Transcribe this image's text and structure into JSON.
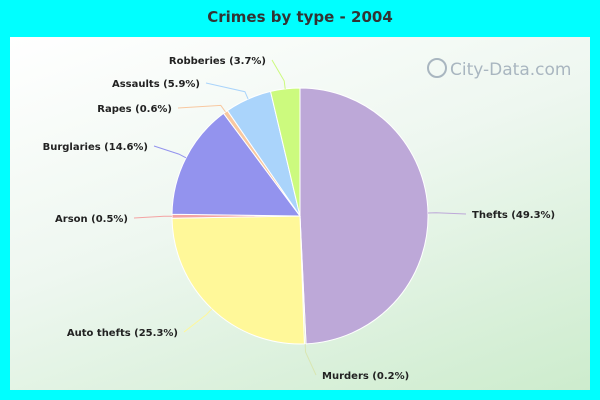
{
  "chart_data": {
    "type": "pie",
    "title": "Crimes by type - 2004",
    "watermark": "City-Data.com",
    "slices": [
      {
        "label": "Thefts",
        "percent": 49.3,
        "text": "Thefts (49.3%)",
        "color": "#bda8d8"
      },
      {
        "label": "Murders",
        "percent": 0.2,
        "text": "Murders (0.2%)",
        "color": "#d9e6b2"
      },
      {
        "label": "Auto thefts",
        "percent": 25.3,
        "text": "Auto thefts (25.3%)",
        "color": "#fff899"
      },
      {
        "label": "Arson",
        "percent": 0.5,
        "text": "Arson (0.5%)",
        "color": "#f4a3a3"
      },
      {
        "label": "Burglaries",
        "percent": 14.6,
        "text": "Burglaries (14.6%)",
        "color": "#9393ee"
      },
      {
        "label": "Rapes",
        "percent": 0.6,
        "text": "Rapes (0.6%)",
        "color": "#f8c8a0"
      },
      {
        "label": "Assaults",
        "percent": 5.9,
        "text": "Assaults (5.9%)",
        "color": "#aad4fb"
      },
      {
        "label": "Robberies",
        "percent": 3.7,
        "text": "Robberies (3.7%)",
        "color": "#ccfa7e"
      }
    ]
  }
}
